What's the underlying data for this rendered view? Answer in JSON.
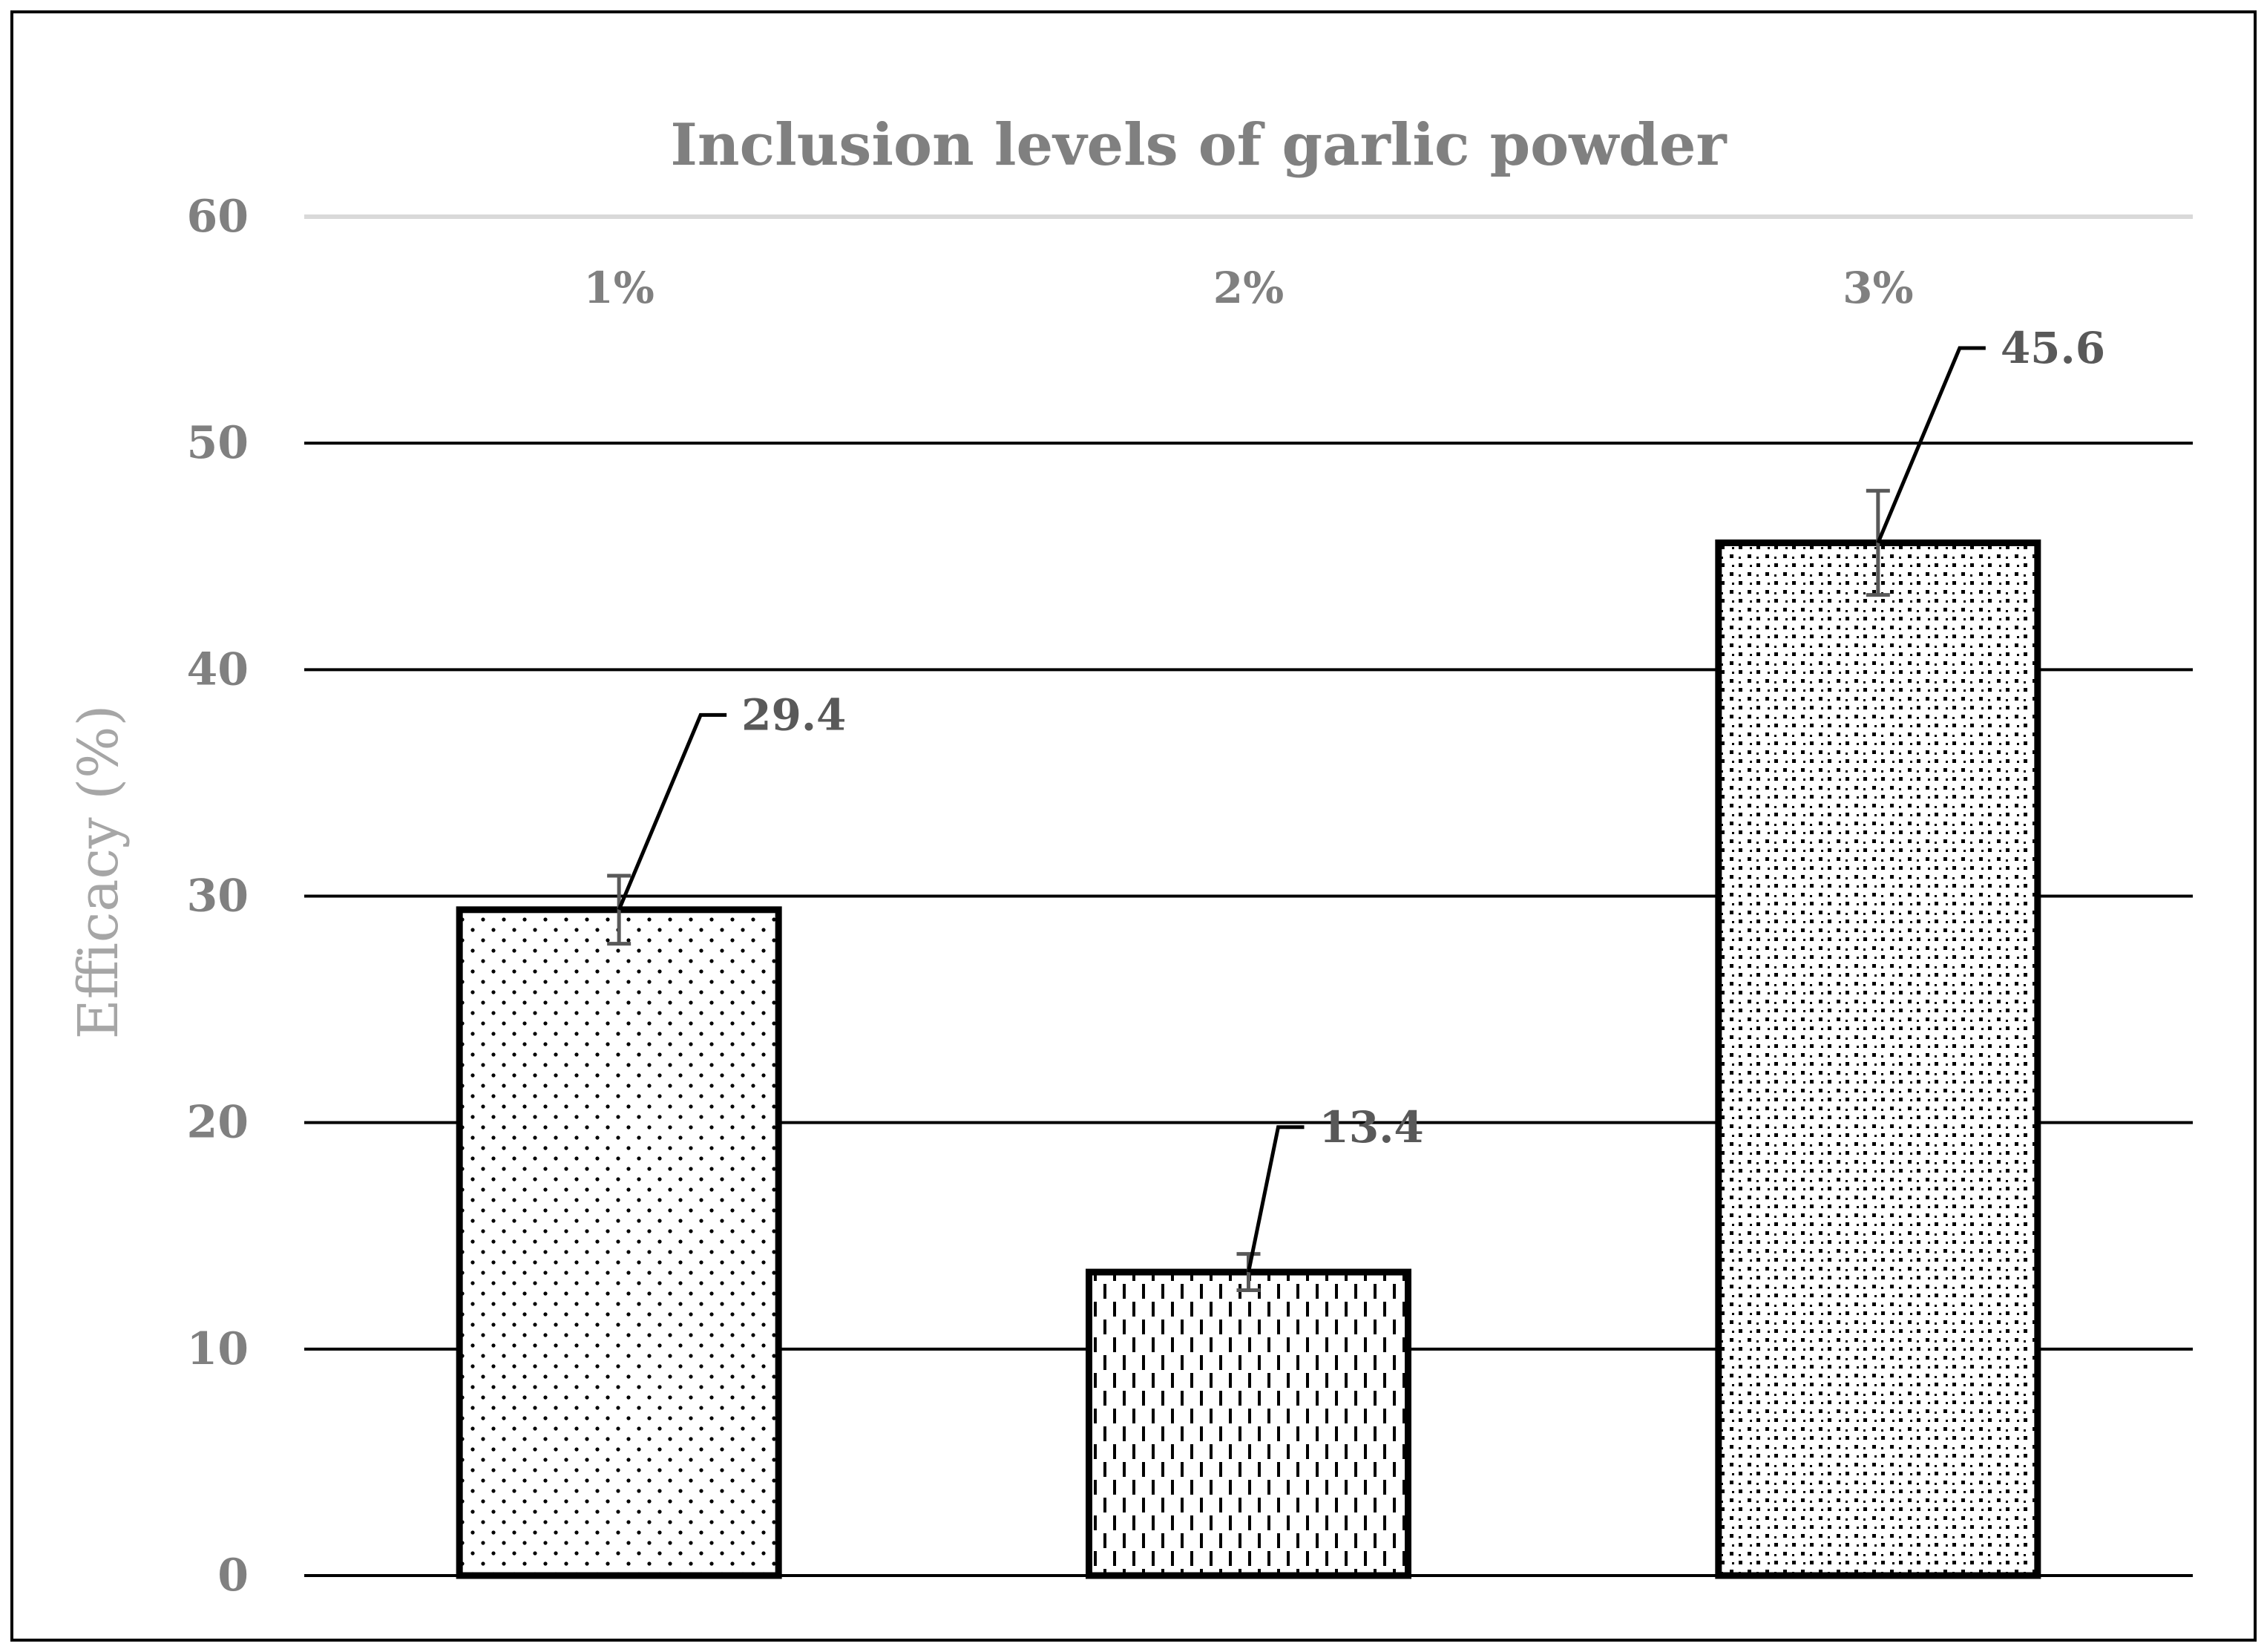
{
  "chart_data": {
    "type": "bar",
    "title": "Inclusion levels of garlic powder",
    "xlabel": "",
    "ylabel": "Efficacy (%)",
    "ylim": [
      0,
      60
    ],
    "yticks": [
      0,
      10,
      20,
      30,
      40,
      50,
      60
    ],
    "categories": [
      "1%",
      "2%",
      "3%"
    ],
    "values": [
      29.4,
      13.4,
      45.6
    ],
    "error": [
      1.5,
      0.8,
      2.3
    ],
    "data_labels": [
      "29.4",
      "13.4",
      "45.6"
    ],
    "category_labels_position": "top",
    "grid": true,
    "legend": "none",
    "patterns": [
      "fine-dots",
      "vertical-dashes",
      "checker-dots"
    ],
    "colors": {
      "bar_outline": "#000000",
      "bar_fill": "#ffffff",
      "gridline": "#000000",
      "top_gridline": "#d9d9d9",
      "error_bar": "#595959",
      "text": "#808080"
    }
  }
}
